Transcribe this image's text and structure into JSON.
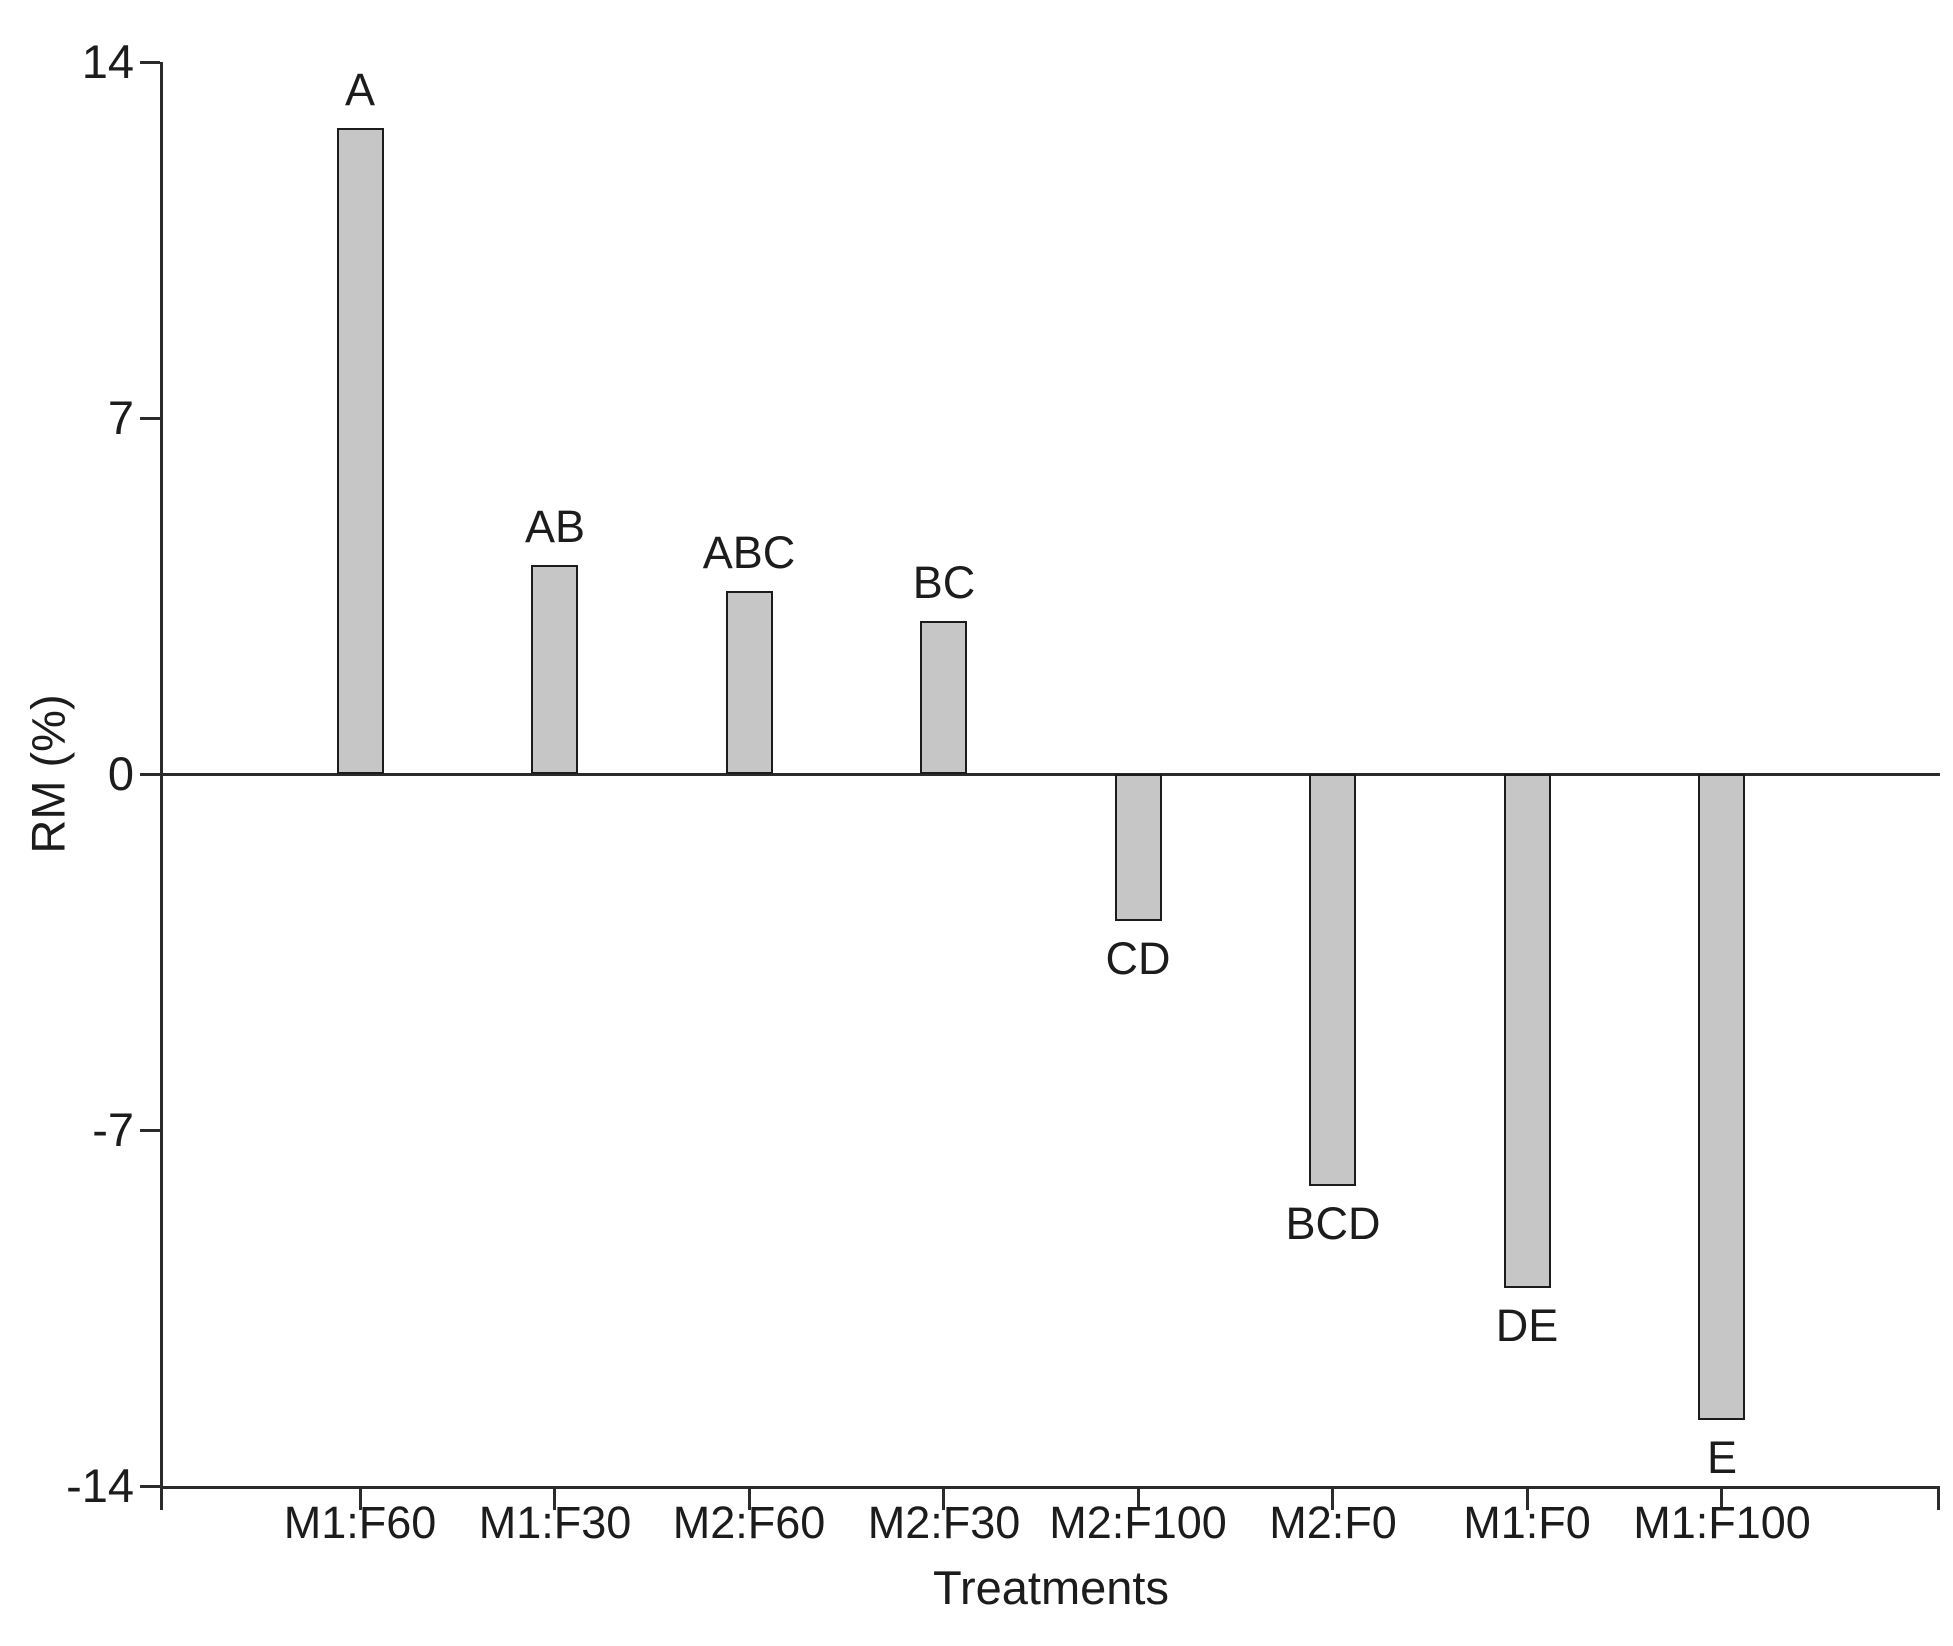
{
  "chart_data": {
    "type": "bar",
    "title": "",
    "xlabel": "Treatments",
    "ylabel": "RM (%)",
    "categories": [
      "M1:F60",
      "M1:F30",
      "M2:F60",
      "M2:F30",
      "M2:F100",
      "M2:F0",
      "M1:F0",
      "M1:F100"
    ],
    "values": [
      12.7,
      4.1,
      3.6,
      3.0,
      -2.9,
      -8.1,
      -10.1,
      -12.7
    ],
    "bar_labels": [
      "A",
      "AB",
      "ABC",
      "BC",
      "CD",
      "BCD",
      "DE",
      "E"
    ],
    "y_ticks": [
      14,
      7,
      0,
      -7,
      -14
    ],
    "ylim": [
      -14,
      14
    ],
    "grid": false,
    "legend": false,
    "zero_line": true,
    "colors": {
      "bar_fill": "#c6c6c6",
      "bar_border": "#1c1c1c",
      "axis": "#2b2b2b",
      "text": "#1c1c1c",
      "background": "#ffffff"
    }
  }
}
